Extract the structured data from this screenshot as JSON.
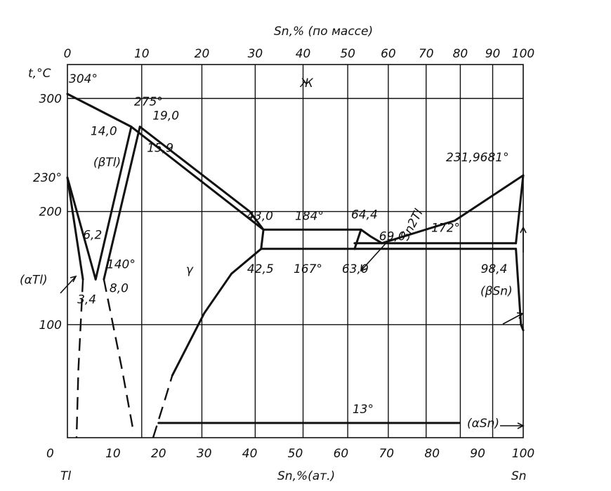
{
  "chart_data": {
    "type": "line",
    "subtype": "phase-diagram",
    "title": "",
    "xlabel": "Sn,%(ат.)",
    "xlabel_top": "Sn,% (по массе)",
    "ylabel": "t,°C",
    "xlim": [
      0,
      100
    ],
    "ylim": [
      0,
      330
    ],
    "grid": true,
    "x_ticks": [
      "0",
      "10",
      "20",
      "30",
      "40",
      "50",
      "60",
      "70",
      "80",
      "90",
      "100"
    ],
    "x_ticks_top": [
      "0",
      "10",
      "20",
      "30",
      "40",
      "50",
      "60",
      "70",
      "80",
      "90",
      "100"
    ],
    "x_ticks_top_at_atomic": [
      0,
      16.3,
      29.5,
      41.2,
      51.7,
      61.5,
      70.4,
      78.7,
      86.2,
      93.3,
      100
    ],
    "y_ticks": [
      {
        "value": 100,
        "label": "100"
      },
      {
        "value": 200,
        "label": "200"
      },
      {
        "value": 230,
        "label": "230°"
      },
      {
        "value": 300,
        "label": "300"
      }
    ],
    "endpoints": {
      "left": "Tl",
      "right": "Sn",
      "origin": "0"
    },
    "series": [
      {
        "key": "liquidus-left",
        "style": "solid",
        "points": [
          [
            0,
            304
          ],
          [
            14,
            275
          ],
          [
            43,
            184
          ]
        ]
      },
      {
        "key": "liquidus-mid",
        "style": "solid",
        "points": [
          [
            15.9,
            275
          ],
          [
            40,
            200
          ],
          [
            43,
            184
          ]
        ]
      },
      {
        "key": "liquidus-right-down",
        "style": "solid",
        "points": [
          [
            64.4,
            184
          ],
          [
            66.5,
            178
          ],
          [
            69,
            172
          ]
        ]
      },
      {
        "key": "liquidus-right-up",
        "style": "solid",
        "points": [
          [
            69,
            172
          ],
          [
            85,
            192
          ],
          [
            100,
            231.9681
          ]
        ]
      },
      {
        "key": "solidus-left",
        "style": "solid",
        "points": [
          [
            0,
            304
          ],
          [
            14,
            275
          ]
        ]
      },
      {
        "key": "beta-tl-left",
        "style": "solid",
        "points": [
          [
            14,
            275
          ],
          [
            6.2,
            140
          ]
        ]
      },
      {
        "key": "beta-tl-right",
        "style": "solid",
        "points": [
          [
            15.9,
            275
          ],
          [
            8,
            140
          ]
        ]
      },
      {
        "key": "alpha-tl-upper",
        "style": "solid",
        "points": [
          [
            0,
            230
          ],
          [
            6.2,
            140
          ]
        ]
      },
      {
        "key": "alpha-tl-lower",
        "style": "solid",
        "points": [
          [
            0,
            230
          ],
          [
            3.4,
            140
          ]
        ]
      },
      {
        "key": "gamma-left-solvus",
        "style": "dashed",
        "points": [
          [
            3.4,
            140
          ],
          [
            2.4,
            60
          ],
          [
            2,
            0
          ]
        ]
      },
      {
        "key": "beta-tl-solvus",
        "style": "dashed",
        "points": [
          [
            8,
            140
          ],
          [
            12,
            60
          ],
          [
            14.5,
            5
          ]
        ]
      },
      {
        "key": "gamma-boundary-dashed",
        "style": "dashed",
        "points": [
          [
            18.8,
            0
          ],
          [
            21.5,
            35
          ],
          [
            23,
            55
          ]
        ]
      },
      {
        "key": "gamma-boundary",
        "style": "solid",
        "points": [
          [
            23,
            55
          ],
          [
            30,
            110
          ],
          [
            36,
            145
          ],
          [
            42.5,
            167
          ]
        ]
      },
      {
        "key": "eutectic-184",
        "style": "solid",
        "points": [
          [
            43,
            184
          ],
          [
            64.4,
            184
          ]
        ]
      },
      {
        "key": "eutectic-167",
        "style": "solid",
        "points": [
          [
            42.5,
            167
          ],
          [
            63,
            167
          ]
        ]
      },
      {
        "key": "eutectic-172",
        "style": "solid",
        "points": [
          [
            63,
            172
          ],
          [
            98.4,
            172
          ]
        ]
      },
      {
        "key": "sn2tl-left",
        "style": "solid",
        "points": [
          [
            43,
            184
          ],
          [
            42.5,
            167
          ]
        ]
      },
      {
        "key": "sn2tl-right",
        "style": "solid",
        "points": [
          [
            64.4,
            184
          ],
          [
            63,
            167
          ]
        ]
      },
      {
        "key": "solid-sn-167",
        "style": "solid",
        "points": [
          [
            63,
            167
          ],
          [
            98.4,
            167
          ]
        ]
      },
      {
        "key": "beta-sn-solvus",
        "style": "solid",
        "points": [
          [
            98.4,
            167
          ],
          [
            99.5,
            100
          ],
          [
            100,
            95
          ]
        ]
      },
      {
        "key": "beta-sn-upper",
        "style": "solid",
        "points": [
          [
            98.4,
            172
          ],
          [
            100,
            231.9681
          ]
        ]
      },
      {
        "key": "transition-13",
        "style": "solid",
        "points": [
          [
            20,
            13
          ],
          [
            86,
            13
          ]
        ]
      }
    ],
    "annotations": [
      {
        "text": "304°",
        "x": 0,
        "y": 304
      },
      {
        "text": "275°",
        "x": 14,
        "y": 275
      },
      {
        "text": "19,0",
        "x": 15.9,
        "y": 275
      },
      {
        "text": "14,0",
        "x": 14,
        "y": 275
      },
      {
        "text": "15,9",
        "x": 15.9,
        "y": 275
      },
      {
        "text": "(βTl)",
        "x": 10,
        "y": 240
      },
      {
        "text": "6,2",
        "x": 6.2,
        "y": 140
      },
      {
        "text": "140°",
        "x": 8,
        "y": 140
      },
      {
        "text": "3,4",
        "x": 3.4,
        "y": 140
      },
      {
        "text": "8,0",
        "x": 8,
        "y": 140
      },
      {
        "text": "(αTl)",
        "x": 0,
        "y": 140
      },
      {
        "text": "Ж",
        "x": 52,
        "y": 310
      },
      {
        "text": "γ",
        "x": 26,
        "y": 145
      },
      {
        "text": "43,0",
        "x": 43,
        "y": 184
      },
      {
        "text": "184°",
        "x": 53,
        "y": 184
      },
      {
        "text": "64,4",
        "x": 64.4,
        "y": 184
      },
      {
        "text": "Sn2Tl",
        "x": 69,
        "y": 230
      },
      {
        "text": "42,5",
        "x": 42.5,
        "y": 167
      },
      {
        "text": "167°",
        "x": 53,
        "y": 167
      },
      {
        "text": "63,0",
        "x": 63,
        "y": 167
      },
      {
        "text": "69,0",
        "x": 69,
        "y": 172
      },
      {
        "text": "231,9681°",
        "x": 100,
        "y": 231.9681
      },
      {
        "text": "172°",
        "x": 90,
        "y": 172
      },
      {
        "text": "98,4",
        "x": 98.4,
        "y": 167
      },
      {
        "text": "(βSn)",
        "x": 98,
        "y": 130
      },
      {
        "text": "13°",
        "x": 65,
        "y": 13
      },
      {
        "text": "(αSn)",
        "x": 96,
        "y": 13
      }
    ]
  }
}
